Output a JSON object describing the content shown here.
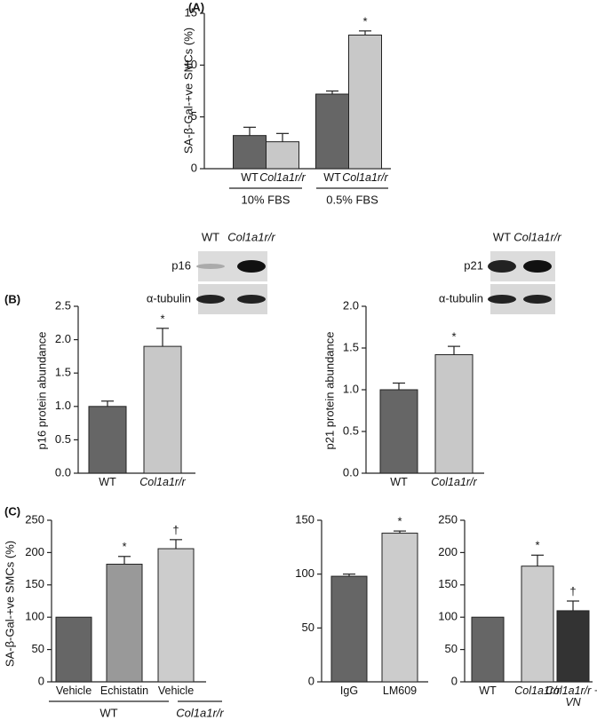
{
  "chart_data": [
    {
      "type": "bar",
      "panel_label": "(A)",
      "y_label": "SA-β-Gal-+ve SMCs (%)",
      "categories": [
        "WT",
        "Col1a1r/r",
        "WT",
        "Col1a1r/r"
      ],
      "values": [
        3.2,
        2.6,
        7.2,
        12.9
      ],
      "errors": [
        0.8,
        0.8,
        0.3,
        0.4
      ],
      "colors": [
        "#666666",
        "#c8c8c8",
        "#666666",
        "#c8c8c8"
      ],
      "significance": [
        null,
        null,
        null,
        "*"
      ],
      "group_labels": [
        "10% FBS",
        "0.5% FBS"
      ],
      "ylim": [
        0,
        15
      ],
      "yticks": [
        0,
        5,
        10,
        15
      ]
    },
    {
      "type": "bar",
      "panel_label": "(B)",
      "y_label": "p16 protein abundance",
      "categories": [
        "WT",
        "Col1a1r/r"
      ],
      "values": [
        1.0,
        1.9
      ],
      "errors": [
        0.08,
        0.27
      ],
      "colors": [
        "#666666",
        "#c8c8c8"
      ],
      "significance": [
        null,
        "*"
      ],
      "blot": {
        "lanes": [
          "WT",
          "Col1a1r/r"
        ],
        "rows": [
          "p16",
          "α-tubulin"
        ]
      },
      "ylim": [
        0,
        2.5
      ],
      "yticks": [
        {
          "value": 0,
          "label": "0.0"
        },
        0.5,
        {
          "value": 1,
          "label": "1.0"
        },
        1.5,
        {
          "value": 2,
          "label": "2.0"
        },
        2.5
      ]
    },
    {
      "type": "bar",
      "y_label": "p21 protein abundance",
      "categories": [
        "WT",
        "Col1a1r/r"
      ],
      "values": [
        1.0,
        1.42
      ],
      "errors": [
        0.08,
        0.1
      ],
      "colors": [
        "#666666",
        "#c8c8c8"
      ],
      "significance": [
        null,
        "*"
      ],
      "blot": {
        "lanes": [
          "WT",
          "Col1a1r/r"
        ],
        "rows": [
          "p21",
          "α-tubulin"
        ]
      },
      "ylim": [
        0,
        2.0
      ],
      "yticks": [
        {
          "value": 0,
          "label": "0.0"
        },
        0.5,
        {
          "value": 1,
          "label": "1.0"
        },
        1.5,
        {
          "value": 2,
          "label": "2.0"
        }
      ]
    },
    {
      "type": "bar",
      "panel_label": "(C)",
      "y_label": "SA-β-Gal-+ve SMCs (%)",
      "categories": [
        "Vehicle",
        "Echistatin",
        "Vehicle"
      ],
      "values": [
        100,
        182,
        206
      ],
      "errors": [
        null,
        12,
        14
      ],
      "colors": [
        "#666666",
        "#999999",
        "#cccccc"
      ],
      "significance": [
        null,
        "*",
        "†"
      ],
      "group_labels": [
        "WT",
        "Col1a1r/r"
      ],
      "ylim": [
        0,
        250
      ],
      "yticks": [
        0,
        50,
        100,
        150,
        200,
        250
      ]
    },
    {
      "type": "bar",
      "categories": [
        "IgG",
        "LM609"
      ],
      "values": [
        98,
        138
      ],
      "errors": [
        2,
        2
      ],
      "colors": [
        "#666666",
        "#cccccc"
      ],
      "significance": [
        null,
        "*"
      ],
      "ylim": [
        0,
        150
      ],
      "yticks": [
        0,
        50,
        100,
        150
      ]
    },
    {
      "type": "bar",
      "categories": [
        "WT",
        "Col1a1r/r",
        "Col1a1r/r + VN"
      ],
      "values": [
        100,
        179,
        110
      ],
      "errors": [
        null,
        17,
        15
      ],
      "colors": [
        "#666666",
        "#cccccc",
        "#333333"
      ],
      "significance": [
        null,
        "*",
        "†"
      ],
      "ylim": [
        0,
        250
      ],
      "yticks": [
        0,
        50,
        100,
        150,
        200,
        250
      ]
    }
  ]
}
